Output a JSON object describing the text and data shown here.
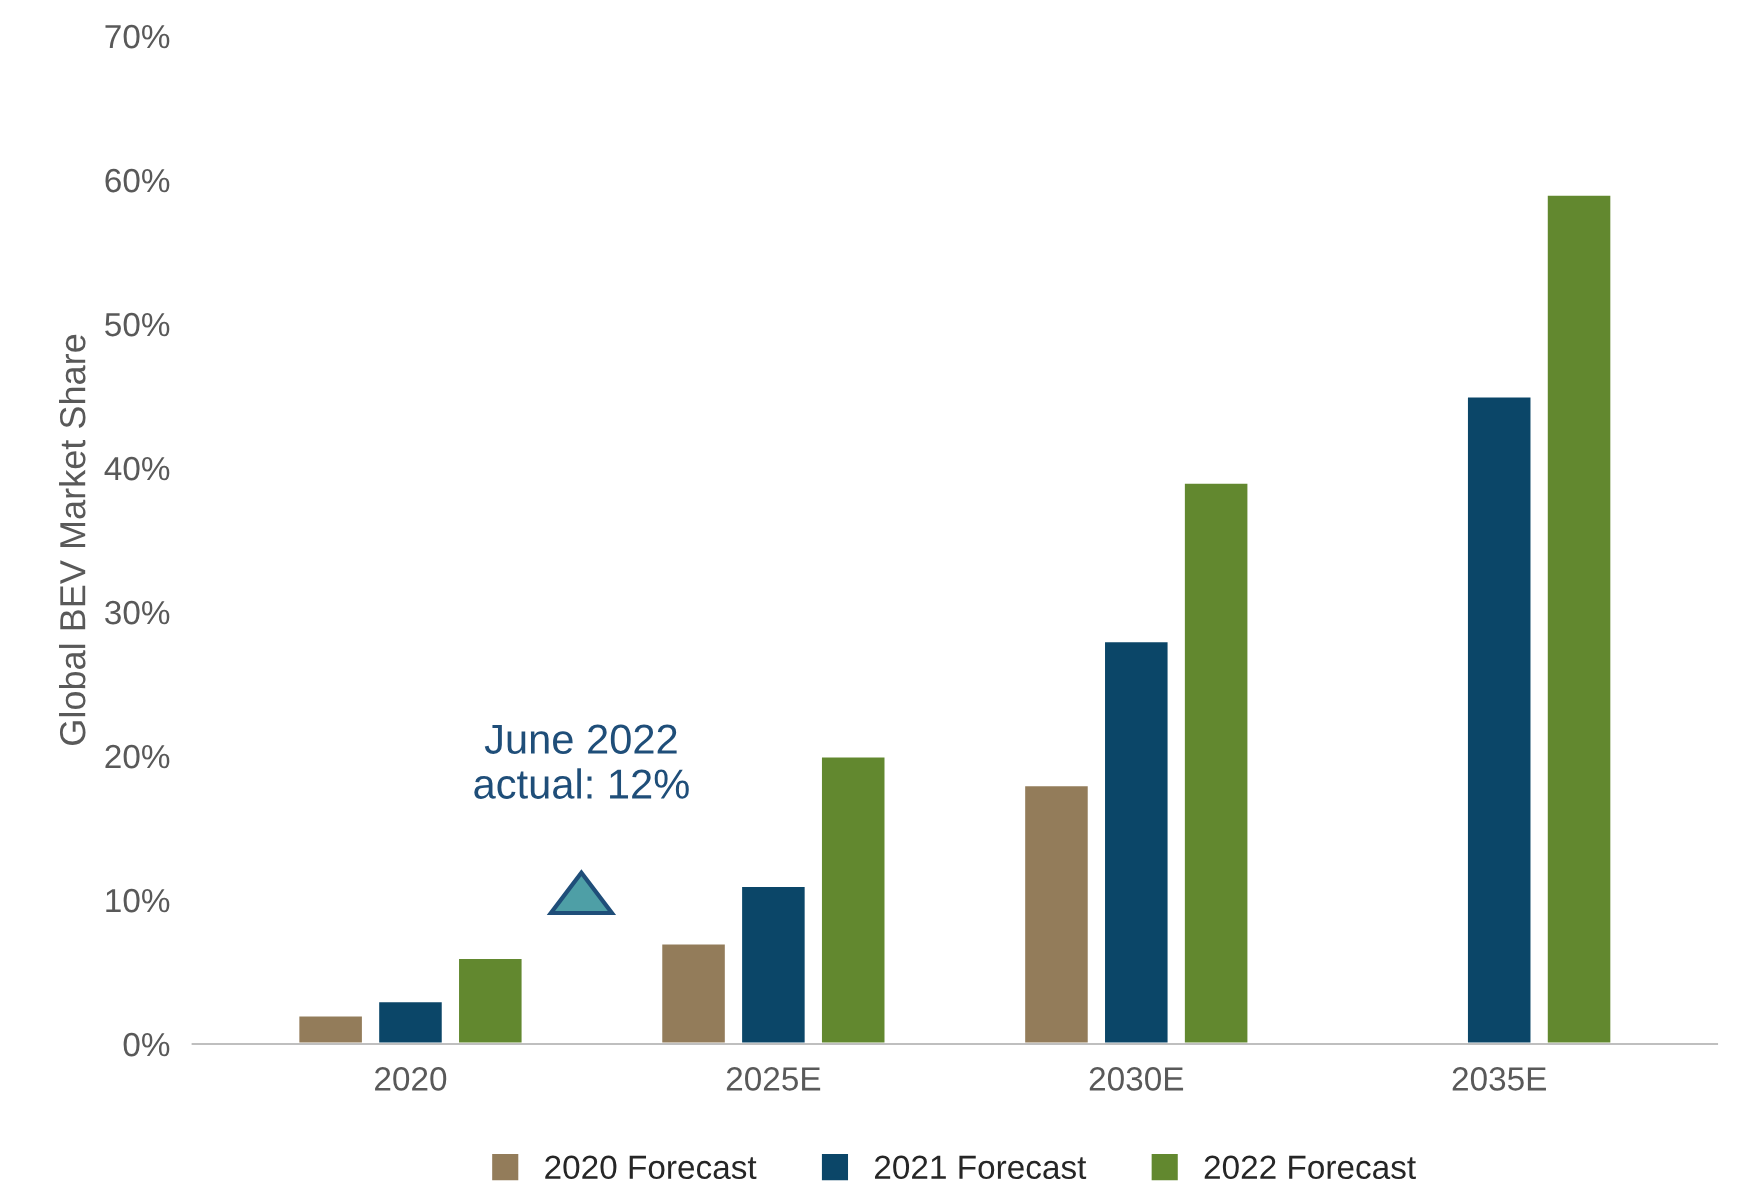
{
  "chart_data": {
    "type": "bar",
    "ylabel": "Global BEV Market Share",
    "categories": [
      "2020",
      "2025E",
      "2030E",
      "2035E"
    ],
    "series": [
      {
        "name": "2020 Forecast",
        "color": "#937c5a",
        "values": [
          2,
          7,
          18,
          null
        ]
      },
      {
        "name": "2021 Forecast",
        "color": "#0b4668",
        "values": [
          3,
          11,
          28,
          45
        ]
      },
      {
        "name": "2022 Forecast",
        "color": "#62882f",
        "values": [
          6,
          20,
          39,
          59
        ]
      }
    ],
    "ylim": [
      0,
      70
    ],
    "yticks": [
      {
        "value": 0,
        "label": "0%"
      },
      {
        "value": 10,
        "label": "10%"
      },
      {
        "value": 20,
        "label": "20%"
      },
      {
        "value": 30,
        "label": "30%"
      },
      {
        "value": 40,
        "label": "40%"
      },
      {
        "value": 50,
        "label": "50%"
      },
      {
        "value": 60,
        "label": "60%"
      },
      {
        "value": 70,
        "label": "70%"
      }
    ],
    "annotations": [
      "June 2022\nactual: 12%"
    ],
    "grid": false,
    "legend": "bottom"
  }
}
